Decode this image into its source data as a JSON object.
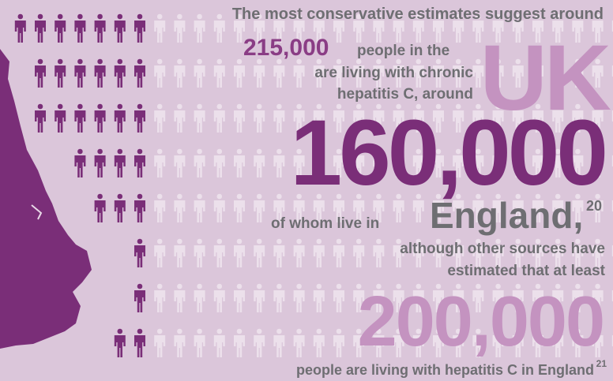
{
  "colors": {
    "background": "#dbc6da",
    "dark_purple": "#7a2e78",
    "light_purple": "#c493c0",
    "grey_text": "#6e6e72",
    "faded_person": "#ece0eb"
  },
  "infographic": {
    "line1": "The most conservative estimates suggest around",
    "number_215": "215,000",
    "people_in_the": "people in the",
    "uk": "UK",
    "are_living": "are  living with chronic",
    "hepatitis_around": "hepatitis C, around",
    "number_160": "160,000",
    "of_whom": "of whom live in",
    "england": "England,",
    "ref20": "20",
    "although": "although other sources have",
    "estimated": "estimated that at least",
    "number_200": "200,000",
    "final_line": "people are living with hepatitis C in England",
    "ref21": "21"
  },
  "people_rows_highlighted": [
    7,
    6,
    6,
    4,
    3,
    1,
    1,
    2
  ],
  "map_icon": "england-map-silhouette",
  "person_icon": "person-icon"
}
